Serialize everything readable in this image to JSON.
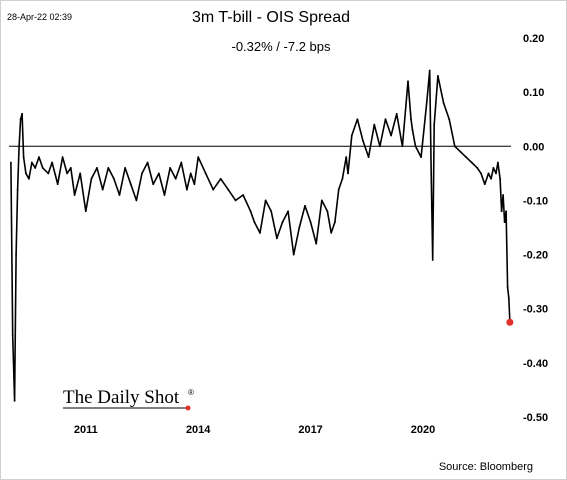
{
  "timestamp": "28-Apr-22 02:39",
  "source": "Source: Bloomberg",
  "logo": {
    "text": "The Daily Shot",
    "mark": "®"
  },
  "colors": {
    "line": "#000000",
    "endpoint": "#e0302a",
    "zero_line": "#000000"
  },
  "chart_data": {
    "type": "line",
    "title": "3m T-bill - OIS Spread",
    "subtitle": "-0.32%  /  -7.2 bps",
    "xlabel": "",
    "ylabel": "",
    "x_ticks": [
      "2011",
      "2014",
      "2017",
      "2020"
    ],
    "x_tick_values": [
      2011.0,
      2014.0,
      2017.0,
      2020.0
    ],
    "xlim": [
      2008.95,
      2022.35
    ],
    "ylim": [
      -0.5,
      0.2
    ],
    "y_ticks": [
      0.2,
      0.1,
      0.0,
      -0.1,
      -0.2,
      -0.3,
      -0.4,
      -0.5
    ],
    "y_tick_labels": [
      "0.20",
      "0.10",
      "0.00",
      "-0.10",
      "-0.20",
      "-0.30",
      "-0.40",
      "-0.50"
    ],
    "axis_side": "right",
    "grid": false,
    "reference_line": 0.0,
    "series": [
      {
        "x": [
          2009.0,
          2009.05,
          2009.1,
          2009.14,
          2009.18,
          2009.22,
          2009.26,
          2009.3,
          2009.34,
          2009.4,
          2009.48,
          2009.56,
          2009.65,
          2009.75,
          2009.85,
          2010.0,
          2010.1,
          2010.25,
          2010.38,
          2010.5,
          2010.6,
          2010.7,
          2010.85,
          2011.0,
          2011.15,
          2011.3,
          2011.45,
          2011.6,
          2011.75,
          2011.9,
          2012.05,
          2012.2,
          2012.35,
          2012.5,
          2012.65,
          2012.8,
          2012.95,
          2013.1,
          2013.25,
          2013.4,
          2013.55,
          2013.7,
          2013.8,
          2013.9,
          2014.0,
          2014.2,
          2014.4,
          2014.6,
          2014.8,
          2015.0,
          2015.2,
          2015.4,
          2015.5,
          2015.65,
          2015.8,
          2015.95,
          2016.1,
          2016.25,
          2016.4,
          2016.55,
          2016.7,
          2016.85,
          2017.0,
          2017.15,
          2017.3,
          2017.45,
          2017.55,
          2017.65,
          2017.75,
          2017.85,
          2017.95,
          2018.0,
          2018.1,
          2018.25,
          2018.4,
          2018.55,
          2018.7,
          2018.85,
          2019.0,
          2019.15,
          2019.3,
          2019.45,
          2019.6,
          2019.68,
          2019.72,
          2019.8,
          2019.95,
          2020.1,
          2020.18,
          2020.22,
          2020.26,
          2020.3,
          2020.4,
          2020.55,
          2020.7,
          2020.85,
          2021.0,
          2021.15,
          2021.3,
          2021.45,
          2021.55,
          2021.65,
          2021.75,
          2021.82,
          2021.88,
          2021.95,
          2022.0,
          2022.06,
          2022.1,
          2022.14,
          2022.18,
          2022.22,
          2022.26,
          2022.29,
          2022.32
        ],
        "y": [
          -0.03,
          -0.35,
          -0.47,
          -0.2,
          -0.08,
          0.0,
          0.05,
          0.06,
          -0.02,
          -0.05,
          -0.06,
          -0.03,
          -0.04,
          -0.02,
          -0.04,
          -0.05,
          -0.03,
          -0.07,
          -0.02,
          -0.05,
          -0.04,
          -0.09,
          -0.05,
          -0.12,
          -0.06,
          -0.04,
          -0.08,
          -0.04,
          -0.06,
          -0.09,
          -0.04,
          -0.07,
          -0.1,
          -0.05,
          -0.03,
          -0.07,
          -0.05,
          -0.09,
          -0.04,
          -0.06,
          -0.03,
          -0.08,
          -0.05,
          -0.07,
          -0.02,
          -0.05,
          -0.08,
          -0.06,
          -0.08,
          -0.1,
          -0.09,
          -0.12,
          -0.14,
          -0.16,
          -0.1,
          -0.12,
          -0.17,
          -0.14,
          -0.12,
          -0.2,
          -0.15,
          -0.11,
          -0.14,
          -0.18,
          -0.1,
          -0.12,
          -0.16,
          -0.14,
          -0.08,
          -0.06,
          -0.02,
          -0.05,
          0.02,
          0.05,
          0.01,
          -0.02,
          0.04,
          0.0,
          0.05,
          0.02,
          0.06,
          0.0,
          0.12,
          0.05,
          0.03,
          0.0,
          -0.02,
          0.08,
          0.14,
          -0.05,
          -0.21,
          0.04,
          0.13,
          0.08,
          0.05,
          0.0,
          -0.01,
          -0.02,
          -0.03,
          -0.04,
          -0.05,
          -0.07,
          -0.05,
          -0.06,
          -0.04,
          -0.05,
          -0.03,
          -0.06,
          -0.12,
          -0.09,
          -0.14,
          -0.12,
          -0.26,
          -0.28,
          -0.325
        ]
      }
    ],
    "endpoint": {
      "x": 2022.32,
      "y": -0.325
    },
    "legend": "none"
  }
}
